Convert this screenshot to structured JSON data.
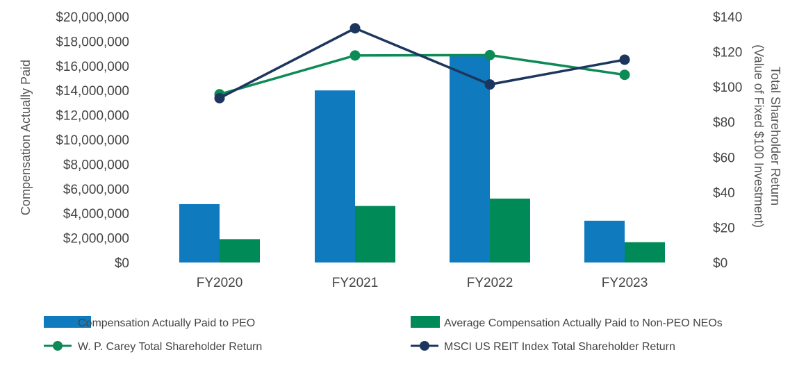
{
  "chart_data": {
    "type": "bar",
    "title": "",
    "categories": [
      "FY2020",
      "FY2021",
      "FY2022",
      "FY2023"
    ],
    "y_left": {
      "label": "Compensation Actually Paid",
      "ylim": [
        0,
        20000000
      ],
      "ticks": [
        0,
        2000000,
        4000000,
        6000000,
        8000000,
        10000000,
        12000000,
        14000000,
        16000000,
        18000000,
        20000000
      ],
      "tick_labels": [
        "$0",
        "$2,000,000",
        "$4,000,000",
        "$6,000,000",
        "$8,000,000",
        "$10,000,000",
        "$12,000,000",
        "$14,000,000",
        "$16,000,000",
        "$18,000,000",
        "$20,000,000"
      ]
    },
    "y_right": {
      "label_line1": "Total Shareholder Return",
      "label_line2": "(Value of Fixed $100 Investment)",
      "ylim": [
        0,
        140
      ],
      "ticks": [
        0,
        20,
        40,
        60,
        80,
        100,
        120,
        140
      ],
      "tick_labels": [
        "$0",
        "$20",
        "$40",
        "$60",
        "$80",
        "$100",
        "$120",
        "$140"
      ]
    },
    "bar_series": [
      {
        "name": "Compensation Actually Paid to PEO",
        "color": "#0F7BBE",
        "values": [
          4750000,
          14000000,
          16850000,
          3400000
        ]
      },
      {
        "name": "Average Compensation Actually Paid to Non-PEO NEOs",
        "color": "#008A57",
        "values": [
          1900000,
          4600000,
          5200000,
          1650000
        ]
      }
    ],
    "line_series": [
      {
        "name": "W. P. Carey Total Shareholder Return",
        "color": "#0E8A56",
        "values": [
          95.8,
          117.9,
          118.1,
          106.9
        ]
      },
      {
        "name": "MSCI US REIT Index Total Shareholder Return",
        "color": "#1D365E",
        "values": [
          93.6,
          133.4,
          101.4,
          115.5
        ]
      }
    ],
    "grid": false,
    "legend_position": "bottom"
  }
}
